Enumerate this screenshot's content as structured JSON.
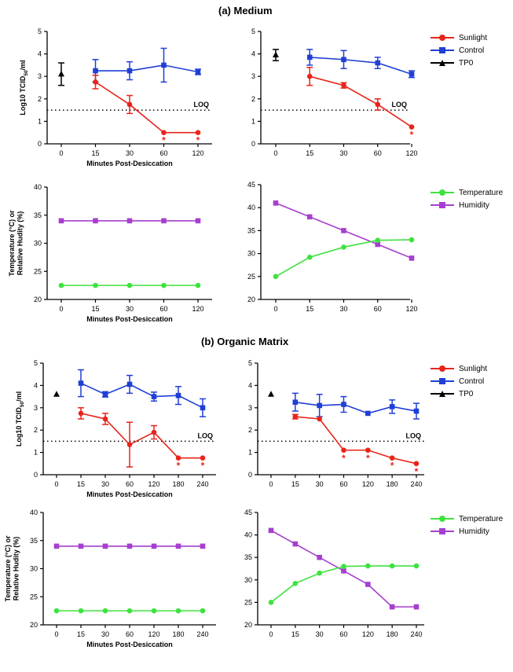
{
  "titles": {
    "a": "(a) Medium",
    "b": "(b) Organic Matrix"
  },
  "colors": {
    "sunlight": "#e8241b",
    "control": "#1f3fd6",
    "tp0": "#000000",
    "temperature": "#3ee23e",
    "humidity": "#a63fcf"
  },
  "legend_virus": {
    "sunlight": "Sunlight",
    "control": "Control",
    "tp0": "TP0"
  },
  "legend_env": {
    "temperature": "Temperature",
    "humidity": "Humidity"
  },
  "chart_data": [
    {
      "id": "a1",
      "type": "line",
      "panel": "(a) Medium - left, virus titer",
      "xlabel": "Minutes Post-Desiccation",
      "ylabel": "Log10 TCID50/ml",
      "categories": [
        "0",
        "15",
        "30",
        "60",
        "120"
      ],
      "ylim": [
        0,
        5
      ],
      "yticks": [
        0,
        1,
        2,
        3,
        4,
        5
      ],
      "loq": 1.5,
      "loq_label": "LOQ",
      "series": [
        {
          "name": "TP0",
          "marker": "triangle",
          "color_key": "tp0",
          "points": [
            {
              "i": 0,
              "y": 3.1,
              "err": 0.5
            }
          ]
        },
        {
          "name": "Control",
          "marker": "square",
          "color_key": "control",
          "points": [
            {
              "i": 1,
              "y": 3.25,
              "err": 0.5
            },
            {
              "i": 2,
              "y": 3.25,
              "err": 0.4
            },
            {
              "i": 3,
              "y": 3.5,
              "err": 0.75
            },
            {
              "i": 4,
              "y": 3.2,
              "err": 0.12
            }
          ]
        },
        {
          "name": "Sunlight",
          "marker": "circle",
          "color_key": "sunlight",
          "points": [
            {
              "i": 1,
              "y": 2.75,
              "err": 0.3
            },
            {
              "i": 2,
              "y": 1.75,
              "err": 0.4
            },
            {
              "i": 3,
              "y": 0.5,
              "err": 0
            },
            {
              "i": 4,
              "y": 0.5,
              "err": 0
            }
          ]
        }
      ],
      "stars": [
        3,
        4
      ],
      "star_label": "*"
    },
    {
      "id": "a2",
      "type": "line",
      "panel": "(a) Medium - right, virus titer",
      "xlabel": "",
      "ylabel": "",
      "categories": [
        "0",
        "15",
        "30",
        "60",
        "120"
      ],
      "ylim": [
        0,
        5
      ],
      "yticks": [
        0,
        1,
        2,
        3,
        4,
        5
      ],
      "loq": 1.5,
      "loq_label": "LOQ",
      "series": [
        {
          "name": "TP0",
          "marker": "triangle",
          "color_key": "tp0",
          "points": [
            {
              "i": 0,
              "y": 3.95,
              "err": 0.25
            }
          ]
        },
        {
          "name": "Control",
          "marker": "square",
          "color_key": "control",
          "points": [
            {
              "i": 1,
              "y": 3.85,
              "err": 0.35
            },
            {
              "i": 2,
              "y": 3.75,
              "err": 0.4
            },
            {
              "i": 3,
              "y": 3.6,
              "err": 0.25
            },
            {
              "i": 4,
              "y": 3.1,
              "err": 0.15
            }
          ]
        },
        {
          "name": "Sunlight",
          "marker": "circle",
          "color_key": "sunlight",
          "points": [
            {
              "i": 1,
              "y": 3.0,
              "err": 0.4
            },
            {
              "i": 2,
              "y": 2.6,
              "err": 0.12
            },
            {
              "i": 3,
              "y": 1.75,
              "err": 0.25
            },
            {
              "i": 4,
              "y": 0.75,
              "err": 0
            }
          ]
        }
      ],
      "stars": [
        4
      ],
      "star_label": "*"
    },
    {
      "id": "a3",
      "type": "line",
      "panel": "(a) Medium - left, environment",
      "xlabel": "Minutes Post-Desiccation",
      "ylabel": "Temperature (°C) or Relative Hudity (%)",
      "categories": [
        "0",
        "15",
        "30",
        "60",
        "120"
      ],
      "ylim": [
        20,
        40
      ],
      "yticks": [
        20,
        25,
        30,
        35,
        40
      ],
      "series": [
        {
          "name": "Humidity",
          "marker": "square",
          "color_key": "humidity",
          "values": [
            34,
            34,
            34,
            34,
            34
          ]
        },
        {
          "name": "Temperature",
          "marker": "circle",
          "color_key": "temperature",
          "values": [
            22.5,
            22.5,
            22.5,
            22.5,
            22.5
          ]
        }
      ]
    },
    {
      "id": "a4",
      "type": "line",
      "panel": "(a) Medium - right, environment",
      "xlabel": "",
      "ylabel": "",
      "categories": [
        "0",
        "15",
        "30",
        "60",
        "120"
      ],
      "ylim": [
        20,
        45
      ],
      "yticks": [
        20,
        25,
        30,
        35,
        40,
        45
      ],
      "series": [
        {
          "name": "Humidity",
          "marker": "square",
          "color_key": "humidity",
          "values": [
            41,
            38,
            35,
            32,
            29
          ]
        },
        {
          "name": "Temperature",
          "marker": "circle",
          "color_key": "temperature",
          "values": [
            25,
            29.2,
            31.4,
            32.9,
            33
          ]
        }
      ]
    },
    {
      "id": "b1",
      "type": "line",
      "panel": "(b) Organic Matrix - left, virus titer",
      "xlabel": "Minutes Post-Desiccation",
      "ylabel": "Log10 TCID50/ml",
      "categories": [
        "0",
        "15",
        "30",
        "60",
        "120",
        "180",
        "240"
      ],
      "ylim": [
        0,
        5
      ],
      "yticks": [
        0,
        1,
        2,
        3,
        4,
        5
      ],
      "loq": 1.5,
      "loq_label": "LOQ",
      "series": [
        {
          "name": "TP0",
          "marker": "triangle",
          "color_key": "tp0",
          "points": [
            {
              "i": 0,
              "y": 3.6,
              "err": 0
            }
          ]
        },
        {
          "name": "Control",
          "marker": "square",
          "color_key": "control",
          "points": [
            {
              "i": 1,
              "y": 4.1,
              "err": 0.6
            },
            {
              "i": 2,
              "y": 3.6,
              "err": 0.12
            },
            {
              "i": 3,
              "y": 4.05,
              "err": 0.4
            },
            {
              "i": 4,
              "y": 3.5,
              "err": 0.2
            },
            {
              "i": 5,
              "y": 3.55,
              "err": 0.4
            },
            {
              "i": 6,
              "y": 3.0,
              "err": 0.4
            }
          ]
        },
        {
          "name": "Sunlight",
          "marker": "circle",
          "color_key": "sunlight",
          "points": [
            {
              "i": 1,
              "y": 2.75,
              "err": 0.25
            },
            {
              "i": 2,
              "y": 2.5,
              "err": 0.25
            },
            {
              "i": 3,
              "y": 1.35,
              "err": 1.0
            },
            {
              "i": 4,
              "y": 1.9,
              "err": 0.3
            },
            {
              "i": 5,
              "y": 0.75,
              "err": 0
            },
            {
              "i": 6,
              "y": 0.75,
              "err": 0
            }
          ]
        }
      ],
      "stars": [
        5,
        6
      ],
      "star_label": "*"
    },
    {
      "id": "b2",
      "type": "line",
      "panel": "(b) Organic Matrix - right, virus titer",
      "xlabel": "",
      "ylabel": "",
      "categories": [
        "0",
        "15",
        "30",
        "60",
        "120",
        "180",
        "240"
      ],
      "ylim": [
        0,
        5
      ],
      "yticks": [
        0,
        1,
        2,
        3,
        4,
        5
      ],
      "loq": 1.5,
      "loq_label": "LOQ",
      "series": [
        {
          "name": "TP0",
          "marker": "triangle",
          "color_key": "tp0",
          "points": [
            {
              "i": 0,
              "y": 3.6,
              "err": 0
            }
          ]
        },
        {
          "name": "Control",
          "marker": "square",
          "color_key": "control",
          "points": [
            {
              "i": 1,
              "y": 3.25,
              "err": 0.4
            },
            {
              "i": 2,
              "y": 3.1,
              "err": 0.5
            },
            {
              "i": 3,
              "y": 3.15,
              "err": 0.35
            },
            {
              "i": 4,
              "y": 2.75,
              "err": 0
            },
            {
              "i": 5,
              "y": 3.05,
              "err": 0.3
            },
            {
              "i": 6,
              "y": 2.85,
              "err": 0.35
            }
          ]
        },
        {
          "name": "Sunlight",
          "marker": "circle",
          "color_key": "sunlight",
          "points": [
            {
              "i": 1,
              "y": 2.6,
              "err": 0.1
            },
            {
              "i": 2,
              "y": 2.5,
              "err": 0
            },
            {
              "i": 3,
              "y": 1.1,
              "err": 0
            },
            {
              "i": 4,
              "y": 1.1,
              "err": 0
            },
            {
              "i": 5,
              "y": 0.75,
              "err": 0
            },
            {
              "i": 6,
              "y": 0.5,
              "err": 0
            }
          ]
        }
      ],
      "stars": [
        3,
        4,
        5,
        6
      ],
      "star_label": "*"
    },
    {
      "id": "b3",
      "type": "line",
      "panel": "(b) Organic Matrix - left, environment",
      "xlabel": "Minutes Post-Desiccation",
      "ylabel": "Temperature (°C) or Relative Hudity (%)",
      "categories": [
        "0",
        "15",
        "30",
        "60",
        "120",
        "180",
        "240"
      ],
      "ylim": [
        20,
        40
      ],
      "yticks": [
        20,
        25,
        30,
        35,
        40
      ],
      "series": [
        {
          "name": "Humidity",
          "marker": "square",
          "color_key": "humidity",
          "values": [
            34,
            34,
            34,
            34,
            34,
            34,
            34
          ]
        },
        {
          "name": "Temperature",
          "marker": "circle",
          "color_key": "temperature",
          "values": [
            22.5,
            22.5,
            22.5,
            22.5,
            22.5,
            22.5,
            22.5
          ]
        }
      ]
    },
    {
      "id": "b4",
      "type": "line",
      "panel": "(b) Organic Matrix - right, environment",
      "xlabel": "",
      "ylabel": "",
      "categories": [
        "0",
        "15",
        "30",
        "60",
        "120",
        "180",
        "240"
      ],
      "ylim": [
        20,
        45
      ],
      "yticks": [
        20,
        25,
        30,
        35,
        40,
        45
      ],
      "series": [
        {
          "name": "Humidity",
          "marker": "square",
          "color_key": "humidity",
          "values": [
            41,
            38,
            35,
            32,
            29,
            24,
            24
          ]
        },
        {
          "name": "Temperature",
          "marker": "circle",
          "color_key": "temperature",
          "values": [
            25,
            29.2,
            31.5,
            33,
            33.1,
            33.1,
            33.1
          ]
        }
      ]
    }
  ]
}
